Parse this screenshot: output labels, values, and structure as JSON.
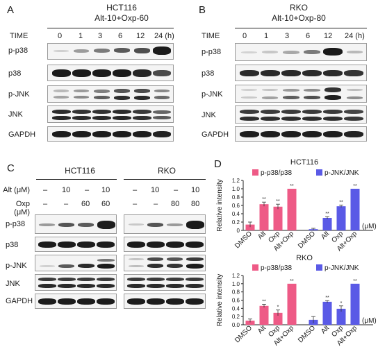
{
  "panel_letters": [
    "A",
    "B",
    "C",
    "D"
  ],
  "A": {
    "title": "HCT116",
    "subtitle": "Alt-10+Oxp-60",
    "time_label": "TIME",
    "times": [
      "0",
      "1",
      "3",
      "6",
      "12",
      "24 (h)"
    ],
    "rows": [
      "p-p38",
      "p38",
      "p-JNK",
      "JNK",
      "GAPDH"
    ]
  },
  "B": {
    "title": "RKO",
    "subtitle": "Alt-10+Oxp-80",
    "time_label": "TIME",
    "times": [
      "0",
      "1",
      "3",
      "6",
      "12",
      "24 (h)"
    ],
    "rows": [
      "p-p38",
      "p38",
      "p-JNK",
      "JNK",
      "GAPDH"
    ]
  },
  "C": {
    "group1": "HCT116",
    "group2": "RKO",
    "alt_label": "Alt (μM)",
    "oxp_label": "Oxp (μM)",
    "alt_values": [
      "–",
      "10",
      "–",
      "10",
      "–",
      "10",
      "–",
      "10"
    ],
    "oxp_values1": [
      "–",
      "–",
      "60",
      "60"
    ],
    "oxp_values2": [
      "–",
      "–",
      "80",
      "80"
    ],
    "rows": [
      "p-p38",
      "p38",
      "p-JNK",
      "JNK",
      "GAPDH"
    ]
  },
  "chart_data": [
    {
      "type": "bar",
      "title": "HCT116",
      "ylabel": "Relative intensity",
      "ylim": [
        0,
        1.2
      ],
      "yticks": [
        "0",
        "0.2",
        "0.4",
        "0.6",
        "0.8",
        "1.0",
        "1.2"
      ],
      "categories": [
        "DMSO",
        "Alt",
        "Oxp",
        "Alt+Oxp"
      ],
      "unit_label": "(μM)",
      "series": [
        {
          "name": "p-p38/p38",
          "color": "#ee5a86",
          "values": [
            0.14,
            0.63,
            0.57,
            1.0
          ],
          "errors": [
            0.06,
            0.05,
            0.06,
            0.0
          ],
          "stars": [
            "",
            "**",
            "**",
            "**"
          ]
        },
        {
          "name": "p-JNK/JNK",
          "color": "#5a5ae6",
          "values": [
            0.03,
            0.3,
            0.58,
            1.0
          ],
          "errors": [
            0.02,
            0.03,
            0.03,
            0.0
          ],
          "stars": [
            "",
            "**",
            "**",
            "**"
          ]
        }
      ]
    },
    {
      "type": "bar",
      "title": "RKO",
      "ylabel": "Relative intensity",
      "ylim": [
        0,
        1.2
      ],
      "yticks": [
        "0.0",
        "0.2",
        "0.4",
        "0.6",
        "0.8",
        "1.0",
        "1.2"
      ],
      "categories": [
        "DMSO",
        "Alt",
        "Oxp",
        "Alt+Oxp"
      ],
      "unit_label": "(μM)",
      "series": [
        {
          "name": "p-p38/p38",
          "color": "#ee5a86",
          "values": [
            0.1,
            0.46,
            0.29,
            1.0
          ],
          "errors": [
            0.04,
            0.04,
            0.07,
            0.0
          ],
          "stars": [
            "",
            "**",
            "*",
            "**"
          ]
        },
        {
          "name": "p-JNK/JNK",
          "color": "#5a5ae6",
          "values": [
            0.12,
            0.56,
            0.39,
            1.0
          ],
          "errors": [
            0.08,
            0.03,
            0.07,
            0.0
          ],
          "stars": [
            "",
            "**",
            "*",
            "**"
          ]
        }
      ]
    }
  ]
}
